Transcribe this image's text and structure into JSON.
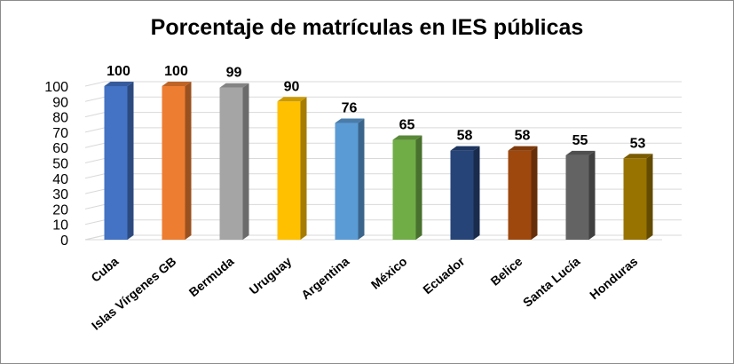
{
  "chart_data": {
    "type": "bar",
    "title": "Porcentaje de matrículas en IES públicas",
    "categories": [
      "Cuba",
      "Islas Vírgenes GB",
      "Bermuda",
      "Uruguay",
      "Argentina",
      "México",
      "Ecuador",
      "Belice",
      "Santa Lucía",
      "Honduras"
    ],
    "values": [
      100,
      100,
      99,
      90,
      76,
      65,
      58,
      58,
      55,
      53
    ],
    "value_labels": [
      "100",
      "100",
      "99",
      "90",
      "76",
      "65",
      "58",
      "58",
      "55",
      "53"
    ],
    "ylim": [
      0,
      100
    ],
    "yticks": [
      0,
      10,
      20,
      30,
      40,
      50,
      60,
      70,
      80,
      90,
      100
    ],
    "ytick_labels": [
      "0",
      "10",
      "20",
      "30",
      "40",
      "50",
      "60",
      "70",
      "80",
      "90",
      "100"
    ],
    "grid": true,
    "legend": "none",
    "bar_style": "3d",
    "colors": [
      "#4472c4",
      "#ed7d31",
      "#a5a5a5",
      "#ffc000",
      "#5b9bd5",
      "#70ad47",
      "#264478",
      "#9e480e",
      "#636363",
      "#997300"
    ]
  }
}
